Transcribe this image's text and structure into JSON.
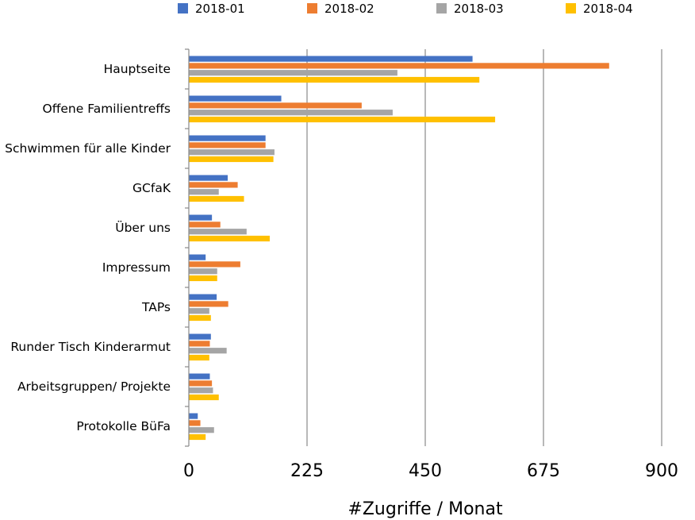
{
  "chart_data": {
    "type": "bar",
    "orientation": "horizontal",
    "categories": [
      "Hauptseite",
      "Offene Familientreffs",
      "Schwimmen für alle Kinder",
      "GCfaK",
      "Über uns",
      "Impressum",
      "TAPs",
      "Runder Tisch Kinderarmut",
      "Arbeitsgruppen/ Projekte",
      "Protokolle BüFa"
    ],
    "series": [
      {
        "name": "2018-01",
        "color": "#4472C4",
        "values": [
          540,
          176,
          146,
          74,
          44,
          32,
          53,
          42,
          40,
          17
        ]
      },
      {
        "name": "2018-02",
        "color": "#ED7D31",
        "values": [
          800,
          329,
          146,
          93,
          60,
          98,
          75,
          40,
          44,
          22
        ]
      },
      {
        "name": "2018-03",
        "color": "#A5A5A5",
        "values": [
          397,
          388,
          163,
          57,
          110,
          54,
          39,
          72,
          46,
          48
        ]
      },
      {
        "name": "2018-04",
        "color": "#FFC000",
        "values": [
          553,
          583,
          161,
          105,
          154,
          54,
          42,
          39,
          57,
          32
        ]
      }
    ],
    "xlabel": "#Zugriffe / Monat",
    "ylabel": "",
    "xlim": [
      0,
      900
    ],
    "xticks": [
      "0",
      "225",
      "450",
      "675",
      "900"
    ],
    "grid": "vertical",
    "legend_position": "top"
  }
}
